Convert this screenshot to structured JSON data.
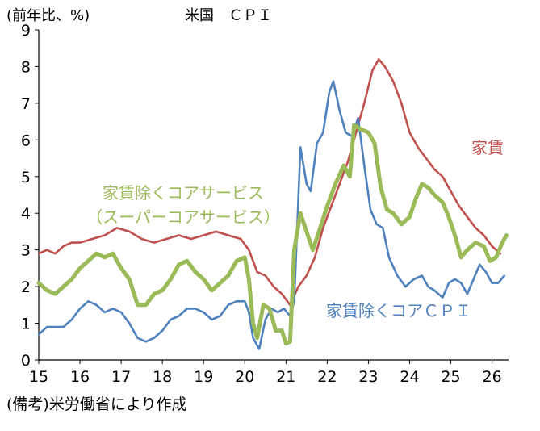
{
  "chart_data": {
    "type": "line",
    "title": "米国　ＣＰＩ",
    "unit_label": "(前年比、%)",
    "source_note": "(備考)米労働省により作成",
    "xlabel": "",
    "ylabel": "",
    "ylim": [
      0,
      9
    ],
    "xlim": [
      15,
      26.4
    ],
    "y_ticks": [
      "0",
      "1",
      "2",
      "3",
      "4",
      "5",
      "6",
      "7",
      "8",
      "9"
    ],
    "x_ticks": [
      "15",
      "16",
      "17",
      "18",
      "19",
      "20",
      "21",
      "22",
      "23",
      "24",
      "25",
      "26"
    ],
    "grid": false,
    "series": [
      {
        "name": "家賃",
        "label_lines": [
          "家賃"
        ],
        "color": "#c0504d",
        "points": [
          [
            15.0,
            2.9
          ],
          [
            15.2,
            3.0
          ],
          [
            15.4,
            2.9
          ],
          [
            15.6,
            3.1
          ],
          [
            15.8,
            3.2
          ],
          [
            16.0,
            3.2
          ],
          [
            16.3,
            3.3
          ],
          [
            16.6,
            3.4
          ],
          [
            16.9,
            3.6
          ],
          [
            17.2,
            3.5
          ],
          [
            17.5,
            3.3
          ],
          [
            17.8,
            3.2
          ],
          [
            18.1,
            3.3
          ],
          [
            18.4,
            3.4
          ],
          [
            18.7,
            3.3
          ],
          [
            19.0,
            3.4
          ],
          [
            19.3,
            3.5
          ],
          [
            19.6,
            3.4
          ],
          [
            19.9,
            3.3
          ],
          [
            20.1,
            3.0
          ],
          [
            20.3,
            2.4
          ],
          [
            20.5,
            2.3
          ],
          [
            20.7,
            2.0
          ],
          [
            20.9,
            1.8
          ],
          [
            21.1,
            1.5
          ],
          [
            21.3,
            2.0
          ],
          [
            21.5,
            2.3
          ],
          [
            21.7,
            2.8
          ],
          [
            21.9,
            3.6
          ],
          [
            22.1,
            4.2
          ],
          [
            22.3,
            4.8
          ],
          [
            22.5,
            5.4
          ],
          [
            22.7,
            6.2
          ],
          [
            22.9,
            7.0
          ],
          [
            23.1,
            7.9
          ],
          [
            23.25,
            8.2
          ],
          [
            23.4,
            8.0
          ],
          [
            23.6,
            7.6
          ],
          [
            23.8,
            7.0
          ],
          [
            24.0,
            6.2
          ],
          [
            24.2,
            5.8
          ],
          [
            24.4,
            5.5
          ],
          [
            24.6,
            5.2
          ],
          [
            24.8,
            5.0
          ],
          [
            25.0,
            4.6
          ],
          [
            25.2,
            4.2
          ],
          [
            25.4,
            3.9
          ],
          [
            25.6,
            3.6
          ],
          [
            25.8,
            3.4
          ],
          [
            26.0,
            3.1
          ],
          [
            26.2,
            2.9
          ]
        ]
      },
      {
        "name": "家賃除くコアサービス（スーパーコアサービス）",
        "label_lines": [
          "家賃除くコアサービス",
          "（スーパーコアサービス）"
        ],
        "color": "#9bbb59",
        "points": [
          [
            15.0,
            2.1
          ],
          [
            15.2,
            1.9
          ],
          [
            15.4,
            1.8
          ],
          [
            15.6,
            2.0
          ],
          [
            15.8,
            2.2
          ],
          [
            16.0,
            2.5
          ],
          [
            16.2,
            2.7
          ],
          [
            16.4,
            2.9
          ],
          [
            16.6,
            2.8
          ],
          [
            16.8,
            2.9
          ],
          [
            17.0,
            2.5
          ],
          [
            17.2,
            2.2
          ],
          [
            17.4,
            1.5
          ],
          [
            17.6,
            1.5
          ],
          [
            17.8,
            1.8
          ],
          [
            18.0,
            1.9
          ],
          [
            18.2,
            2.2
          ],
          [
            18.4,
            2.6
          ],
          [
            18.6,
            2.7
          ],
          [
            18.8,
            2.4
          ],
          [
            19.0,
            2.2
          ],
          [
            19.2,
            1.9
          ],
          [
            19.4,
            2.1
          ],
          [
            19.6,
            2.3
          ],
          [
            19.8,
            2.7
          ],
          [
            20.0,
            2.8
          ],
          [
            20.1,
            2.2
          ],
          [
            20.2,
            1.0
          ],
          [
            20.3,
            0.6
          ],
          [
            20.45,
            1.5
          ],
          [
            20.6,
            1.4
          ],
          [
            20.75,
            0.8
          ],
          [
            20.9,
            0.8
          ],
          [
            21.0,
            0.45
          ],
          [
            21.1,
            0.5
          ],
          [
            21.2,
            3.0
          ],
          [
            21.35,
            4.0
          ],
          [
            21.5,
            3.5
          ],
          [
            21.65,
            3.0
          ],
          [
            21.8,
            3.5
          ],
          [
            22.0,
            4.2
          ],
          [
            22.2,
            4.8
          ],
          [
            22.4,
            5.3
          ],
          [
            22.55,
            5.0
          ],
          [
            22.65,
            6.4
          ],
          [
            22.8,
            6.3
          ],
          [
            23.0,
            6.2
          ],
          [
            23.15,
            5.9
          ],
          [
            23.3,
            4.7
          ],
          [
            23.45,
            4.1
          ],
          [
            23.6,
            4.0
          ],
          [
            23.8,
            3.7
          ],
          [
            24.0,
            3.9
          ],
          [
            24.15,
            4.4
          ],
          [
            24.3,
            4.8
          ],
          [
            24.45,
            4.7
          ],
          [
            24.6,
            4.5
          ],
          [
            24.8,
            4.3
          ],
          [
            24.95,
            3.9
          ],
          [
            25.1,
            3.4
          ],
          [
            25.25,
            2.8
          ],
          [
            25.4,
            3.0
          ],
          [
            25.6,
            3.2
          ],
          [
            25.8,
            3.1
          ],
          [
            25.95,
            2.7
          ],
          [
            26.1,
            2.8
          ],
          [
            26.25,
            3.2
          ],
          [
            26.35,
            3.4
          ]
        ]
      },
      {
        "name": "家賃除くコアＣＰＩ",
        "label_lines": [
          "家賃除くコアＣＰＩ"
        ],
        "color": "#4f81bd",
        "points": [
          [
            15.0,
            0.7
          ],
          [
            15.2,
            0.9
          ],
          [
            15.4,
            0.9
          ],
          [
            15.6,
            0.9
          ],
          [
            15.8,
            1.1
          ],
          [
            16.0,
            1.4
          ],
          [
            16.2,
            1.6
          ],
          [
            16.4,
            1.5
          ],
          [
            16.6,
            1.3
          ],
          [
            16.8,
            1.4
          ],
          [
            17.0,
            1.3
          ],
          [
            17.2,
            1.0
          ],
          [
            17.4,
            0.6
          ],
          [
            17.6,
            0.5
          ],
          [
            17.8,
            0.6
          ],
          [
            18.0,
            0.8
          ],
          [
            18.2,
            1.1
          ],
          [
            18.4,
            1.2
          ],
          [
            18.6,
            1.4
          ],
          [
            18.8,
            1.4
          ],
          [
            19.0,
            1.3
          ],
          [
            19.2,
            1.1
          ],
          [
            19.4,
            1.2
          ],
          [
            19.6,
            1.5
          ],
          [
            19.8,
            1.6
          ],
          [
            20.0,
            1.6
          ],
          [
            20.1,
            1.3
          ],
          [
            20.2,
            0.6
          ],
          [
            20.35,
            0.3
          ],
          [
            20.5,
            1.1
          ],
          [
            20.65,
            1.4
          ],
          [
            20.8,
            1.3
          ],
          [
            20.95,
            1.4
          ],
          [
            21.1,
            1.2
          ],
          [
            21.2,
            1.6
          ],
          [
            21.35,
            5.8
          ],
          [
            21.5,
            4.8
          ],
          [
            21.6,
            4.6
          ],
          [
            21.75,
            5.9
          ],
          [
            21.9,
            6.2
          ],
          [
            22.05,
            7.3
          ],
          [
            22.15,
            7.6
          ],
          [
            22.3,
            6.8
          ],
          [
            22.45,
            6.2
          ],
          [
            22.6,
            6.1
          ],
          [
            22.75,
            6.6
          ],
          [
            22.9,
            5.3
          ],
          [
            23.05,
            4.1
          ],
          [
            23.2,
            3.7
          ],
          [
            23.35,
            3.6
          ],
          [
            23.5,
            2.8
          ],
          [
            23.7,
            2.3
          ],
          [
            23.9,
            2.0
          ],
          [
            24.1,
            2.2
          ],
          [
            24.3,
            2.3
          ],
          [
            24.45,
            2.0
          ],
          [
            24.6,
            1.9
          ],
          [
            24.8,
            1.7
          ],
          [
            24.95,
            2.1
          ],
          [
            25.1,
            2.2
          ],
          [
            25.25,
            2.1
          ],
          [
            25.4,
            1.8
          ],
          [
            25.55,
            2.2
          ],
          [
            25.7,
            2.6
          ],
          [
            25.85,
            2.4
          ],
          [
            26.0,
            2.1
          ],
          [
            26.15,
            2.1
          ],
          [
            26.3,
            2.3
          ]
        ]
      }
    ]
  }
}
